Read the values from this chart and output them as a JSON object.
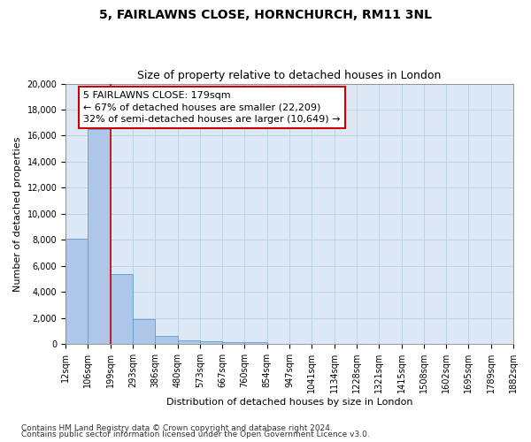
{
  "title1": "5, FAIRLAWNS CLOSE, HORNCHURCH, RM11 3NL",
  "title2": "Size of property relative to detached houses in London",
  "xlabel": "Distribution of detached houses by size in London",
  "ylabel": "Number of detached properties",
  "bar_values": [
    8100,
    16500,
    5400,
    1900,
    650,
    320,
    200,
    175,
    130,
    0,
    0,
    0,
    0,
    0,
    0,
    0,
    0,
    0,
    0,
    0
  ],
  "bin_labels": [
    "12sqm",
    "106sqm",
    "199sqm",
    "293sqm",
    "386sqm",
    "480sqm",
    "573sqm",
    "667sqm",
    "760sqm",
    "854sqm",
    "947sqm",
    "1041sqm",
    "1134sqm",
    "1228sqm",
    "1321sqm",
    "1415sqm",
    "1508sqm",
    "1602sqm",
    "1695sqm",
    "1789sqm",
    "1882sqm"
  ],
  "bar_color": "#aec6e8",
  "bar_edge_color": "#5a9fd4",
  "property_line_color": "#cc0000",
  "annotation_text": "5 FAIRLAWNS CLOSE: 179sqm\n← 67% of detached houses are smaller (22,209)\n32% of semi-detached houses are larger (10,649) →",
  "annotation_box_color": "#ffffff",
  "annotation_box_edge": "#cc0000",
  "ylim": [
    0,
    20000
  ],
  "yticks": [
    0,
    2000,
    4000,
    6000,
    8000,
    10000,
    12000,
    14000,
    16000,
    18000,
    20000
  ],
  "footer1": "Contains HM Land Registry data © Crown copyright and database right 2024.",
  "footer2": "Contains public sector information licensed under the Open Government Licence v3.0.",
  "bg_color": "#ffffff",
  "plot_bg_color": "#dce8f5",
  "grid_color": "#b8cfe0",
  "title1_fontsize": 10,
  "title2_fontsize": 9,
  "xlabel_fontsize": 8,
  "ylabel_fontsize": 8,
  "tick_fontsize": 7,
  "annotation_fontsize": 8,
  "footer_fontsize": 6.5
}
